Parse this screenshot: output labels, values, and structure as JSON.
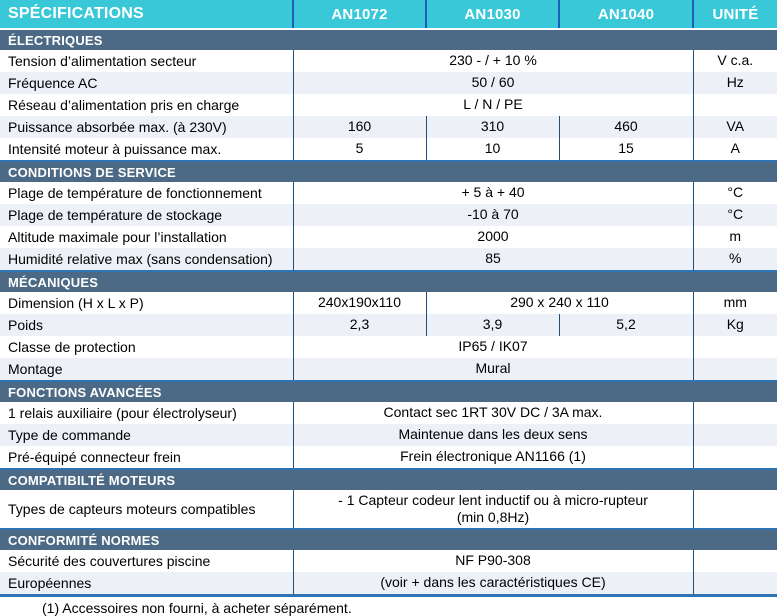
{
  "header": {
    "columns": [
      "SPÉCIFICATIONS",
      "AN1072",
      "AN1030",
      "AN1040",
      "UNITÉ"
    ]
  },
  "sections": [
    {
      "title": "ÉLECTRIQUES",
      "rows": [
        {
          "label": "Tension d’alimentation secteur",
          "cells": [
            {
              "text": "230 - / + 10 %",
              "span": 3
            }
          ],
          "unit": "V c.a."
        },
        {
          "label": "Fréquence AC",
          "cells": [
            {
              "text": "50 / 60",
              "span": 3
            }
          ],
          "unit": "Hz"
        },
        {
          "label": "Réseau d’alimentation pris en charge",
          "cells": [
            {
              "text": "L / N / PE",
              "span": 3
            }
          ],
          "unit": ""
        },
        {
          "label": "Puissance absorbée max. (à 230V)",
          "cells": [
            {
              "text": "160",
              "span": 1
            },
            {
              "text": "310",
              "span": 1
            },
            {
              "text": "460",
              "span": 1
            }
          ],
          "unit": "VA"
        },
        {
          "label": "Intensité moteur à puissance max.",
          "cells": [
            {
              "text": "5",
              "span": 1
            },
            {
              "text": "10",
              "span": 1
            },
            {
              "text": "15",
              "span": 1
            }
          ],
          "unit": "A"
        }
      ]
    },
    {
      "title": "CONDITIONS DE SERVICE",
      "rows": [
        {
          "label": "Plage de température de fonctionnement",
          "cells": [
            {
              "text": "+ 5 à + 40",
              "span": 3
            }
          ],
          "unit": "°C"
        },
        {
          "label": "Plage de température de stockage",
          "cells": [
            {
              "text": "-10 à 70",
              "span": 3
            }
          ],
          "unit": "°C"
        },
        {
          "label": "Altitude maximale pour l’installation",
          "cells": [
            {
              "text": "2000",
              "span": 3
            }
          ],
          "unit": "m"
        },
        {
          "label": "Humidité relative max (sans condensation)",
          "cells": [
            {
              "text": "85",
              "span": 3
            }
          ],
          "unit": "%"
        }
      ]
    },
    {
      "title": "MÉCANIQUES",
      "rows": [
        {
          "label": "Dimension (H x L x P)",
          "cells": [
            {
              "text": "240x190x110",
              "span": 1
            },
            {
              "text": "290 x 240 x 110",
              "span": 2
            }
          ],
          "unit": "mm"
        },
        {
          "label": "Poids",
          "cells": [
            {
              "text": "2,3",
              "span": 1
            },
            {
              "text": "3,9",
              "span": 1
            },
            {
              "text": "5,2",
              "span": 1
            }
          ],
          "unit": "Kg"
        },
        {
          "label": "Classe de protection",
          "cells": [
            {
              "text": "IP65 / IK07",
              "span": 3
            }
          ],
          "unit": ""
        },
        {
          "label": "Montage",
          "cells": [
            {
              "text": "Mural",
              "span": 3
            }
          ],
          "unit": ""
        }
      ]
    },
    {
      "title": "FONCTIONS AVANCÉES",
      "rows": [
        {
          "label": "1 relais auxiliaire (pour électrolyseur)",
          "cells": [
            {
              "text": "Contact sec 1RT 30V DC / 3A max.",
              "span": 3
            }
          ],
          "unit": ""
        },
        {
          "label": "Type de commande",
          "cells": [
            {
              "text": "Maintenue dans les deux sens",
              "span": 3
            }
          ],
          "unit": ""
        },
        {
          "label": "Pré-équipé connecteur frein",
          "cells": [
            {
              "text": "Frein électronique AN1166 (1)",
              "span": 3
            }
          ],
          "unit": ""
        }
      ]
    },
    {
      "title": "COMPATIBILTÉ MOTEURS",
      "rows": [
        {
          "label": "Types de capteurs moteurs compatibles",
          "tall": true,
          "cells": [
            {
              "text": "- 1 Capteur codeur lent inductif ou à micro-rupteur\n(min 0,8Hz)",
              "span": 3
            }
          ],
          "unit": ""
        }
      ]
    },
    {
      "title": "CONFORMITÉ NORMES",
      "rows": [
        {
          "label": "Sécurité des couvertures piscine",
          "cells": [
            {
              "text": "NF P90-308",
              "span": 3
            }
          ],
          "unit": ""
        },
        {
          "label": "Européennes",
          "cells": [
            {
              "text": "(voir + dans les caractéristiques CE)",
              "span": 3
            }
          ],
          "unit": ""
        }
      ]
    }
  ],
  "footnote": "(1) Accessoires non fourni, à acheter séparément.",
  "colors": {
    "header_bg": "#38C8D8",
    "header_text": "#FFFFFF",
    "header_divider": "#1E5EB5",
    "section_bg": "#4C6A85",
    "section_top_line": "#2E74B5",
    "cell_divider": "#1F4E79",
    "stripe_row_bg": "#EDF0F7",
    "bottom_border": "#2E74B5"
  }
}
